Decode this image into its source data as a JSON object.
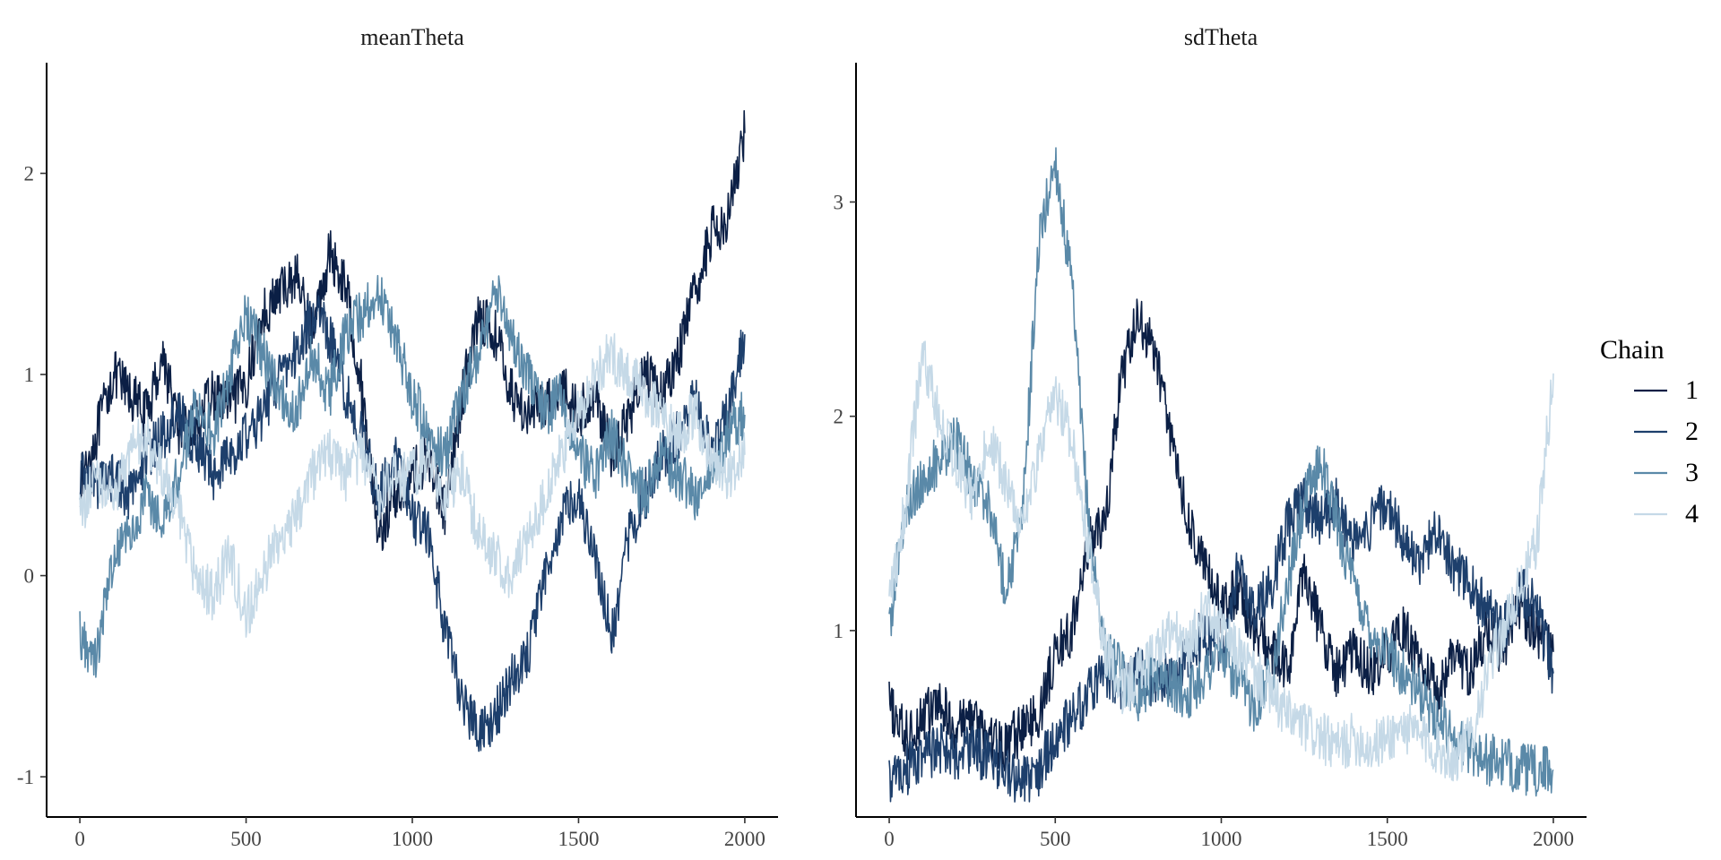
{
  "legend": {
    "title": "Chain",
    "entries": [
      {
        "label": "1",
        "color": "#0b1f45"
      },
      {
        "label": "2",
        "color": "#1d3f6c"
      },
      {
        "label": "3",
        "color": "#5a89a8"
      },
      {
        "label": "4",
        "color": "#c5d9e7"
      }
    ]
  },
  "chart_data": [
    {
      "type": "line",
      "title": "meanTheta",
      "xlabel": "",
      "ylabel": "",
      "xlim": [
        -100,
        2100
      ],
      "ylim": [
        -1.2,
        2.55
      ],
      "x_ticks": [
        0,
        500,
        1000,
        1500,
        2000
      ],
      "y_ticks": [
        -1,
        0,
        1,
        2
      ],
      "x_tick_labels": [
        "0",
        "500",
        "1000",
        "1500",
        "2000"
      ],
      "y_tick_labels": [
        "-1",
        "0",
        "1",
        "2"
      ],
      "grid": false,
      "series": [
        {
          "name": "1",
          "color": "#0b1f45",
          "x": [
            0,
            50,
            100,
            150,
            200,
            250,
            300,
            350,
            400,
            450,
            500,
            550,
            600,
            650,
            700,
            750,
            800,
            850,
            900,
            950,
            1000,
            1050,
            1100,
            1150,
            1200,
            1250,
            1300,
            1350,
            1400,
            1450,
            1500,
            1550,
            1600,
            1650,
            1700,
            1750,
            1800,
            1850,
            1900,
            1950,
            2000
          ],
          "y": [
            0.45,
            0.7,
            1.0,
            0.9,
            0.8,
            1.1,
            0.7,
            0.75,
            0.9,
            0.85,
            0.95,
            1.3,
            1.4,
            1.5,
            1.2,
            1.6,
            1.45,
            0.9,
            0.2,
            0.4,
            0.5,
            0.6,
            0.3,
            0.9,
            1.3,
            1.2,
            0.9,
            0.8,
            0.85,
            0.95,
            0.8,
            0.9,
            0.6,
            0.8,
            1.0,
            0.9,
            1.1,
            1.4,
            1.7,
            1.8,
            2.2
          ]
        },
        {
          "name": "2",
          "color": "#1d3f6c",
          "x": [
            0,
            50,
            100,
            150,
            200,
            250,
            300,
            350,
            400,
            450,
            500,
            550,
            600,
            650,
            700,
            750,
            800,
            850,
            900,
            950,
            1000,
            1050,
            1100,
            1150,
            1200,
            1250,
            1300,
            1350,
            1400,
            1450,
            1500,
            1550,
            1600,
            1650,
            1700,
            1750,
            1800,
            1850,
            1900,
            1950,
            2000
          ],
          "y": [
            0.5,
            0.45,
            0.5,
            0.4,
            0.6,
            0.7,
            0.8,
            0.65,
            0.5,
            0.6,
            0.7,
            0.8,
            1.0,
            1.1,
            1.3,
            1.2,
            0.9,
            0.7,
            0.4,
            0.6,
            0.3,
            0.2,
            -0.3,
            -0.6,
            -0.8,
            -0.7,
            -0.5,
            -0.4,
            0.0,
            0.3,
            0.4,
            0.1,
            -0.3,
            0.2,
            0.4,
            0.6,
            0.7,
            0.9,
            0.6,
            0.8,
            1.2
          ]
        },
        {
          "name": "3",
          "color": "#5a89a8",
          "x": [
            0,
            50,
            100,
            150,
            200,
            250,
            300,
            350,
            400,
            450,
            500,
            550,
            600,
            650,
            700,
            750,
            800,
            850,
            900,
            950,
            1000,
            1050,
            1100,
            1150,
            1200,
            1250,
            1300,
            1350,
            1400,
            1450,
            1500,
            1550,
            1600,
            1650,
            1700,
            1750,
            1800,
            1850,
            1900,
            1950,
            2000
          ],
          "y": [
            -0.3,
            -0.4,
            0.1,
            0.2,
            0.4,
            0.3,
            0.5,
            0.9,
            0.7,
            1.0,
            1.3,
            1.1,
            0.9,
            0.8,
            1.1,
            0.9,
            1.2,
            1.3,
            1.4,
            1.2,
            0.9,
            0.7,
            0.6,
            0.9,
            1.1,
            1.4,
            1.2,
            1.0,
            0.8,
            0.9,
            0.6,
            0.5,
            0.7,
            0.5,
            0.4,
            0.6,
            0.5,
            0.4,
            0.5,
            0.7,
            0.8
          ]
        },
        {
          "name": "4",
          "color": "#c5d9e7",
          "x": [
            0,
            50,
            100,
            150,
            200,
            250,
            300,
            350,
            400,
            450,
            500,
            550,
            600,
            650,
            700,
            750,
            800,
            850,
            900,
            950,
            1000,
            1050,
            1100,
            1150,
            1200,
            1250,
            1300,
            1350,
            1400,
            1450,
            1500,
            1550,
            1600,
            1650,
            1700,
            1750,
            1800,
            1850,
            1900,
            1950,
            2000
          ],
          "y": [
            0.3,
            0.5,
            0.4,
            0.6,
            0.7,
            0.5,
            0.3,
            0.0,
            -0.1,
            0.1,
            -0.2,
            0.0,
            0.2,
            0.3,
            0.5,
            0.6,
            0.5,
            0.6,
            0.4,
            0.5,
            0.5,
            0.6,
            0.4,
            0.5,
            0.2,
            0.1,
            0.0,
            0.2,
            0.4,
            0.6,
            0.8,
            1.0,
            1.1,
            1.0,
            0.9,
            0.8,
            0.7,
            0.8,
            0.6,
            0.5,
            0.6
          ]
        }
      ]
    },
    {
      "type": "line",
      "title": "sdTheta",
      "xlabel": "",
      "ylabel": "",
      "xlim": [
        -100,
        2100
      ],
      "ylim": [
        0.13,
        3.65
      ],
      "x_ticks": [
        0,
        500,
        1000,
        1500,
        2000
      ],
      "y_ticks": [
        1,
        2,
        3
      ],
      "x_tick_labels": [
        "0",
        "500",
        "1000",
        "1500",
        "2000"
      ],
      "y_tick_labels": [
        "1",
        "2",
        "3"
      ],
      "grid": false,
      "series": [
        {
          "name": "1",
          "color": "#0b1f45",
          "x": [
            0,
            50,
            100,
            150,
            200,
            250,
            300,
            350,
            400,
            450,
            500,
            550,
            600,
            650,
            700,
            750,
            800,
            850,
            900,
            950,
            1000,
            1050,
            1100,
            1150,
            1200,
            1250,
            1300,
            1350,
            1400,
            1450,
            1500,
            1550,
            1600,
            1650,
            1700,
            1750,
            1800,
            1850,
            1900,
            1950,
            2000
          ],
          "y": [
            0.65,
            0.5,
            0.6,
            0.65,
            0.55,
            0.6,
            0.5,
            0.45,
            0.55,
            0.6,
            0.9,
            1.0,
            1.4,
            1.5,
            2.2,
            2.45,
            2.3,
            1.9,
            1.5,
            1.3,
            1.1,
            1.2,
            1.0,
            0.9,
            0.8,
            1.3,
            1.0,
            0.8,
            0.9,
            0.8,
            0.9,
            1.0,
            0.85,
            0.7,
            0.9,
            0.8,
            1.0,
            0.9,
            1.1,
            1.0,
            0.9
          ]
        },
        {
          "name": "2",
          "color": "#1d3f6c",
          "x": [
            0,
            50,
            100,
            150,
            200,
            250,
            300,
            350,
            400,
            450,
            500,
            550,
            600,
            650,
            700,
            750,
            800,
            850,
            900,
            950,
            1000,
            1050,
            1100,
            1150,
            1200,
            1250,
            1300,
            1350,
            1400,
            1450,
            1500,
            1550,
            1600,
            1650,
            1700,
            1750,
            1800,
            1850,
            1900,
            1950,
            2000
          ],
          "y": [
            0.3,
            0.35,
            0.4,
            0.45,
            0.4,
            0.45,
            0.4,
            0.35,
            0.3,
            0.35,
            0.5,
            0.6,
            0.7,
            0.8,
            0.75,
            0.8,
            0.75,
            0.8,
            0.9,
            1.0,
            0.9,
            1.3,
            1.1,
            1.2,
            1.5,
            1.6,
            1.5,
            1.6,
            1.4,
            1.5,
            1.6,
            1.4,
            1.3,
            1.5,
            1.3,
            1.2,
            1.1,
            1.0,
            1.2,
            1.1,
            0.8
          ]
        },
        {
          "name": "3",
          "color": "#5a89a8",
          "x": [
            0,
            50,
            100,
            150,
            200,
            250,
            300,
            350,
            400,
            450,
            500,
            550,
            600,
            650,
            700,
            750,
            800,
            850,
            900,
            950,
            1000,
            1050,
            1100,
            1150,
            1200,
            1250,
            1300,
            1350,
            1400,
            1450,
            1500,
            1550,
            1600,
            1650,
            1700,
            1750,
            1800,
            1850,
            1900,
            1950,
            2000
          ],
          "y": [
            1.0,
            1.6,
            1.7,
            1.8,
            1.9,
            1.7,
            1.6,
            1.2,
            1.5,
            2.8,
            3.2,
            2.6,
            1.5,
            0.9,
            0.8,
            0.7,
            0.8,
            0.75,
            0.7,
            0.8,
            0.9,
            0.75,
            0.65,
            0.8,
            1.2,
            1.6,
            1.8,
            1.5,
            1.2,
            1.0,
            0.9,
            0.8,
            0.7,
            0.6,
            0.5,
            0.45,
            0.4,
            0.38,
            0.36,
            0.34,
            0.35
          ]
        },
        {
          "name": "4",
          "color": "#c5d9e7",
          "x": [
            0,
            50,
            100,
            150,
            200,
            250,
            300,
            350,
            400,
            450,
            500,
            550,
            600,
            650,
            700,
            750,
            800,
            850,
            900,
            950,
            1000,
            1050,
            1100,
            1150,
            1200,
            1250,
            1300,
            1350,
            1400,
            1450,
            1500,
            1550,
            1600,
            1650,
            1700,
            1750,
            1800,
            1850,
            1900,
            1950,
            2000
          ],
          "y": [
            1.1,
            1.6,
            2.3,
            2.0,
            1.8,
            1.6,
            1.9,
            1.7,
            1.5,
            1.8,
            2.1,
            1.9,
            1.4,
            0.9,
            0.7,
            0.8,
            0.9,
            1.0,
            0.9,
            1.1,
            1.0,
            0.9,
            0.8,
            0.7,
            0.6,
            0.55,
            0.5,
            0.45,
            0.5,
            0.45,
            0.5,
            0.55,
            0.5,
            0.45,
            0.4,
            0.5,
            0.8,
            1.0,
            1.2,
            1.4,
            2.2
          ]
        }
      ]
    }
  ]
}
